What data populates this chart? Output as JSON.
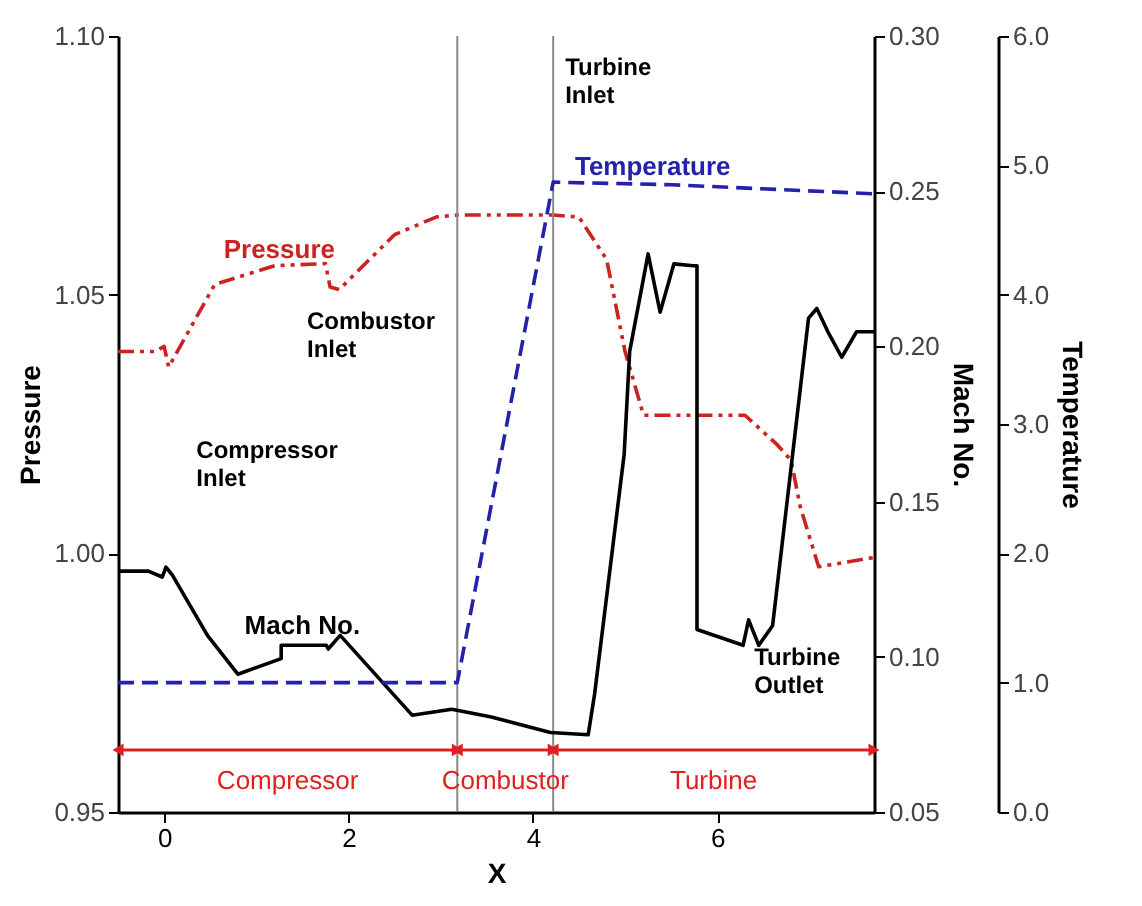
{
  "chart_data": {
    "type": "line",
    "xlabel": "X",
    "ylabel": "Pressure",
    "y2label": "Mach No.",
    "y3label": "Temperature",
    "xlim": [
      -0.5,
      7.7
    ],
    "xticks": [
      0,
      2,
      4,
      6
    ],
    "ylim": [
      0.95,
      1.1
    ],
    "yticks": [
      {
        "value": 0.95,
        "label": "0.95"
      },
      {
        "value": 1.0,
        "label": "1.00"
      },
      {
        "value": 1.05,
        "label": "1.05"
      },
      {
        "value": 1.1,
        "label": "1.10"
      }
    ],
    "y2lim": [
      0.05,
      0.3
    ],
    "y2ticks": [
      {
        "value": 0.05,
        "label": "0.05"
      },
      {
        "value": 0.1,
        "label": "0.10"
      },
      {
        "value": 0.15,
        "label": "0.15"
      },
      {
        "value": 0.2,
        "label": "0.20"
      },
      {
        "value": 0.25,
        "label": "0.25"
      },
      {
        "value": 0.3,
        "label": "0.30"
      }
    ],
    "y3lim": [
      0,
      6
    ],
    "y3ticks": [
      {
        "value": 0,
        "label": "0.0"
      },
      {
        "value": 1,
        "label": "1.0"
      },
      {
        "value": 2,
        "label": "2.0"
      },
      {
        "value": 3,
        "label": "3.0"
      },
      {
        "value": 4,
        "label": "4.0"
      },
      {
        "value": 5,
        "label": "5.0"
      },
      {
        "value": 6,
        "label": "6.0"
      }
    ],
    "grid": false,
    "series": [
      {
        "name": "Pressure",
        "color": "#cc2222",
        "axis": "y",
        "line_style": "dashed",
        "x": [
          -0.5,
          -0.1,
          0.0,
          0.05,
          0.55,
          1.2,
          1.75,
          1.8,
          1.9,
          2.5,
          2.95,
          3.18,
          4.22,
          4.5,
          4.8,
          5.0,
          5.2,
          5.7,
          6.3,
          6.65,
          6.8,
          6.9,
          7.1,
          7.7
        ],
        "values": [
          1.039,
          1.039,
          1.04,
          1.036,
          1.052,
          1.0556,
          1.056,
          1.0515,
          1.051,
          1.0616,
          1.065,
          1.0654,
          1.0654,
          1.065,
          1.0568,
          1.039,
          1.0267,
          1.0267,
          1.0267,
          1.021,
          1.018,
          1.009,
          0.9974,
          0.9992
        ]
      },
      {
        "name": "Mach No.",
        "color": "#000000",
        "axis": "y2",
        "line_style": "solid",
        "x": [
          -0.49,
          -0.17,
          -0.02,
          0.02,
          0.09,
          0.47,
          0.8,
          1.27,
          1.27,
          1.76,
          1.78,
          1.91,
          2.69,
          3.12,
          3.55,
          4.19,
          4.6,
          4.67,
          4.99,
          5.05,
          5.25,
          5.38,
          5.53,
          5.74,
          5.78,
          5.78,
          6.28,
          6.34,
          6.45,
          6.6,
          6.99,
          7.08,
          7.2,
          7.35,
          7.51,
          7.7
        ],
        "values": [
          0.1276,
          0.1276,
          0.1257,
          0.1289,
          0.1263,
          0.1069,
          0.0944,
          0.0994,
          0.1037,
          0.1037,
          0.1025,
          0.1069,
          0.0812,
          0.0831,
          0.0806,
          0.0756,
          0.0749,
          0.0881,
          0.1652,
          0.1984,
          0.2298,
          0.211,
          0.2266,
          0.226,
          0.226,
          0.1088,
          0.1037,
          0.1119,
          0.1037,
          0.11,
          0.2091,
          0.2122,
          0.2047,
          0.1965,
          0.2047,
          0.2047
        ]
      },
      {
        "name": "Temperature",
        "color": "#2222aa",
        "axis": "y3",
        "line_style": "dashed",
        "x": [
          -0.5,
          3.18,
          4.22,
          5.5,
          7.7
        ],
        "values": [
          1.0,
          1.0,
          4.87,
          4.85,
          4.78
        ]
      }
    ],
    "ref_lines": [
      {
        "axis": "x",
        "value": 3.18,
        "color": "#888888"
      },
      {
        "axis": "x",
        "value": 4.22,
        "color": "#888888"
      }
    ],
    "annotations": [
      "Compressor Inlet",
      "Combustor Inlet",
      "Turbine Inlet",
      "Turbine Outlet",
      "Compressor",
      "Combustor",
      "Turbine"
    ]
  }
}
